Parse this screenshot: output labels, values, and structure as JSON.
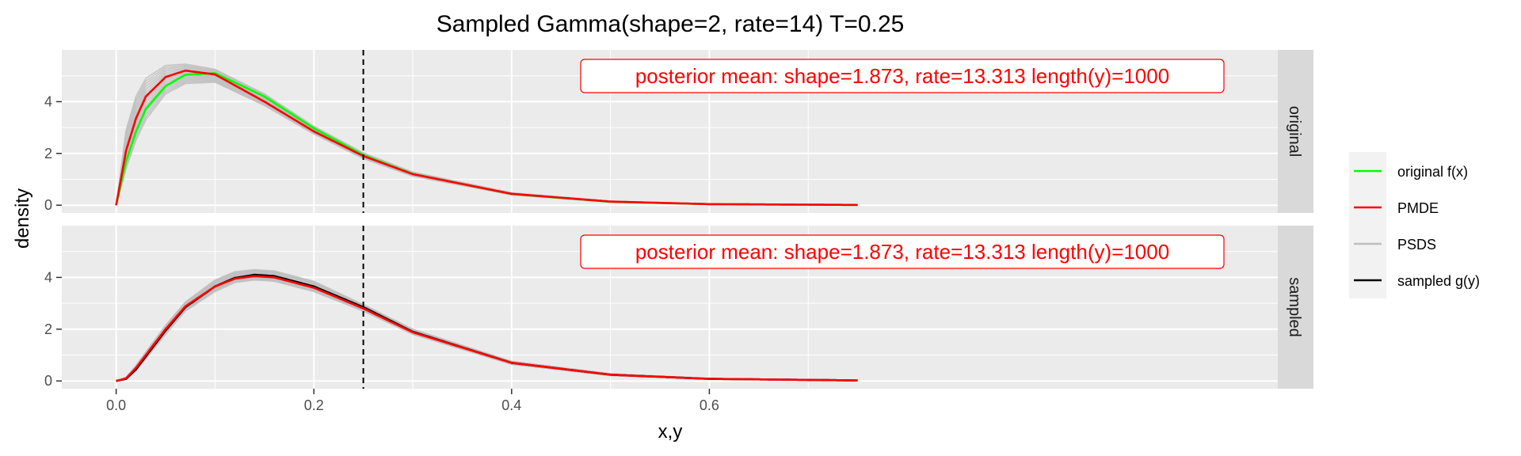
{
  "chart_data": {
    "type": "line",
    "title": "Sampled Gamma(shape=2, rate=14) T=0.25",
    "xlabel": "x,y",
    "ylabel": "density",
    "xlim": [
      -0.055,
      1.175
    ],
    "ylim": [
      -0.3,
      6.0
    ],
    "x_ticks": [
      0.0,
      0.2,
      0.4,
      0.6
    ],
    "x_tick_labels": [
      "0.0",
      "0.2",
      "0.4",
      "0.6"
    ],
    "y_ticks": [
      0,
      2,
      4
    ],
    "y_tick_labels": [
      "0",
      "2",
      "4"
    ],
    "grid": true,
    "vline": 0.25,
    "legend_position": "right",
    "colors": {
      "panel_bg": "#ebebeb",
      "strip_bg": "#d9d9d9",
      "grid": "#ffffff",
      "original": "#00ff00",
      "pmde": "#ff0000",
      "psds": "#bebebe",
      "sampled": "#000000",
      "annotation": "#ff0000"
    },
    "legend": [
      {
        "name": "original f(x)",
        "color": "#00ff00"
      },
      {
        "name": "PMDE",
        "color": "#ff0000"
      },
      {
        "name": "PSDS",
        "color": "#bebebe"
      },
      {
        "name": "sampled g(y)",
        "color": "#000000"
      }
    ],
    "facets": [
      {
        "label": "original",
        "annotation": "posterior mean: shape=1.873, rate=13.313 length(y)=1000",
        "series": [
          {
            "name": "original f(x)",
            "color": "#00ff00",
            "x": [
              0,
              0.01,
              0.02,
              0.03,
              0.05,
              0.07,
              0.1,
              0.15,
              0.2,
              0.25,
              0.3,
              0.4,
              0.5,
              0.6,
              0.75
            ],
            "y": [
              0,
              1.7,
              2.84,
              3.72,
              4.6,
              5.04,
              5.1,
              4.2,
              2.97,
              1.94,
              1.21,
              0.43,
              0.13,
              0.04,
              0.01
            ]
          },
          {
            "name": "PMDE",
            "color": "#ff0000",
            "x": [
              0,
              0.01,
              0.02,
              0.03,
              0.05,
              0.07,
              0.1,
              0.15,
              0.2,
              0.25,
              0.3,
              0.4,
              0.5,
              0.6,
              0.75
            ],
            "y": [
              0,
              2.1,
              3.35,
              4.2,
              4.95,
              5.2,
              5.05,
              4.0,
              2.85,
              1.9,
              1.2,
              0.44,
              0.14,
              0.04,
              0.01
            ]
          }
        ],
        "band": {
          "name": "PSDS",
          "color": "#bebebe",
          "x": [
            0,
            0.01,
            0.02,
            0.03,
            0.05,
            0.07,
            0.1,
            0.15,
            0.2,
            0.25,
            0.3,
            0.4,
            0.5,
            0.6,
            0.75
          ],
          "lower": [
            0,
            1.4,
            2.5,
            3.3,
            4.3,
            4.7,
            4.75,
            3.85,
            2.75,
            1.8,
            1.12,
            0.4,
            0.12,
            0.03,
            0.0
          ],
          "upper": [
            0,
            2.9,
            4.2,
            4.9,
            5.4,
            5.45,
            5.25,
            4.3,
            3.05,
            2.02,
            1.28,
            0.48,
            0.16,
            0.05,
            0.02
          ]
        }
      },
      {
        "label": "sampled",
        "annotation": "posterior mean: shape=1.873, rate=13.313 length(y)=1000",
        "series": [
          {
            "name": "sampled g(y)",
            "color": "#000000",
            "x": [
              0,
              0.01,
              0.02,
              0.03,
              0.05,
              0.07,
              0.1,
              0.12,
              0.14,
              0.16,
              0.2,
              0.25,
              0.3,
              0.4,
              0.5,
              0.6,
              0.75
            ],
            "y": [
              0,
              0.08,
              0.45,
              0.95,
              1.95,
              2.85,
              3.65,
              3.98,
              4.1,
              4.05,
              3.65,
              2.85,
              1.9,
              0.7,
              0.24,
              0.08,
              0.02
            ]
          },
          {
            "name": "PMDE",
            "color": "#ff0000",
            "x": [
              0,
              0.01,
              0.02,
              0.03,
              0.05,
              0.07,
              0.1,
              0.12,
              0.14,
              0.16,
              0.2,
              0.25,
              0.3,
              0.4,
              0.5,
              0.6,
              0.75
            ],
            "y": [
              0,
              0.1,
              0.5,
              1.0,
              2.0,
              2.88,
              3.65,
              3.95,
              4.05,
              4.0,
              3.6,
              2.8,
              1.88,
              0.7,
              0.24,
              0.08,
              0.02
            ]
          }
        ],
        "band": {
          "name": "PSDS",
          "color": "#bebebe",
          "x": [
            0,
            0.01,
            0.02,
            0.03,
            0.05,
            0.07,
            0.1,
            0.12,
            0.14,
            0.16,
            0.2,
            0.25,
            0.3,
            0.4,
            0.5,
            0.6,
            0.75
          ],
          "lower": [
            0,
            0.06,
            0.38,
            0.85,
            1.8,
            2.7,
            3.45,
            3.8,
            3.9,
            3.85,
            3.45,
            2.7,
            1.8,
            0.64,
            0.21,
            0.07,
            0.01
          ],
          "upper": [
            0,
            0.14,
            0.6,
            1.12,
            2.15,
            3.05,
            3.9,
            4.22,
            4.3,
            4.25,
            3.85,
            2.95,
            2.0,
            0.76,
            0.28,
            0.1,
            0.03
          ]
        }
      }
    ]
  }
}
